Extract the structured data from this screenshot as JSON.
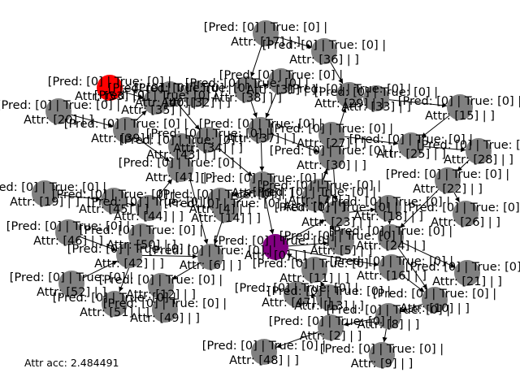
{
  "accuracy_text": "Attr acc: 2.484491",
  "colors": {
    "node_default": "#808080",
    "node_red": "#ff0000",
    "node_purple": "#800080",
    "edge": "#000000"
  },
  "nodes": [
    {
      "id": "n1",
      "line1": "[Pred: [0] | True: [0] |",
      "line2": "Attr: [1] | ]",
      "color": "node_default"
    },
    {
      "id": "n2",
      "line1": "[Pred: [0] | True: [0] |",
      "line2": "Attr: [2] | ]",
      "color": "node_default"
    },
    {
      "id": "n3",
      "line1": "[Pred: [0] | True: [0] |",
      "line2": "Attr: [3] | ]",
      "color": "node_default"
    },
    {
      "id": "n4",
      "line1": "[Pred: [0] | True: [0] |",
      "line2": "Attr: [4] | ]",
      "color": "node_default"
    },
    {
      "id": "n5",
      "line1": "[Pred: [0] | True: [0] |",
      "line2": "Attr: [5] | ]",
      "color": "node_default"
    },
    {
      "id": "n6",
      "line1": "[Pred: [0] | True: [0] |",
      "line2": "Attr: [6] | ]",
      "color": "node_default"
    },
    {
      "id": "n7",
      "line1": "[Pred: [0] | True: [0] |",
      "line2": "Attr: [7] | ]",
      "color": "node_default"
    },
    {
      "id": "n8",
      "line1": "[Pred: [0] | True: [0] |",
      "line2": "Attr: [8] | ]",
      "color": "node_default"
    },
    {
      "id": "n9",
      "line1": "[Pred: [0] | True: [0] |",
      "line2": "Attr: [9] | ]",
      "color": "node_default"
    },
    {
      "id": "n10",
      "line1": "[Pred: [0] | True: [0] |",
      "line2": "Attr: [10] | ]",
      "color": "node_default"
    },
    {
      "id": "n11",
      "line1": "[Pred: [0] | True: [0] |",
      "line2": "Attr: [11] | ]",
      "color": "node_default"
    },
    {
      "id": "n12",
      "line1": "[Pred: [0] | True: [0] |",
      "line2": "Attr: [12] | ]",
      "color": "node_default"
    },
    {
      "id": "n13",
      "line1": "[Pred: [0] | True: [0] |",
      "line2": "Attr: [13] | ]",
      "color": "node_default"
    },
    {
      "id": "n14",
      "line1": "[Pred: [0] | True: [0] |",
      "line2": "Attr: [14] | ]",
      "color": "node_default"
    },
    {
      "id": "n15",
      "line1": "[Pred: [0] | True: [0] |",
      "line2": "Attr: [15] | ]",
      "color": "node_default"
    },
    {
      "id": "n16",
      "line1": "[Pred: [0] | True: [0] |",
      "line2": "Attr: [16] | ]",
      "color": "node_default"
    },
    {
      "id": "n17",
      "line1": "[Pred: [0] | True: [0] |",
      "line2": "Attr: [17] | ]",
      "color": "node_default"
    },
    {
      "id": "n18",
      "line1": "[Pred: [0] | True: [0] |",
      "line2": "Attr: [18] | ]",
      "color": "node_default"
    },
    {
      "id": "n19",
      "line1": "[Pred: [0] | True: [0] |",
      "line2": "Attr: [19] | ]",
      "color": "node_default"
    },
    {
      "id": "n20",
      "line1": "[Pred: [0] | True: [0] |",
      "line2": "Attr: [20] | ]",
      "color": "node_default"
    },
    {
      "id": "n21",
      "line1": "[Pred: [0] | True: [0] |",
      "line2": "Attr: [21] | ]",
      "color": "node_default"
    },
    {
      "id": "n22",
      "line1": "[Pred: [0] | True: [0] |",
      "line2": "Attr: [22] | ]",
      "color": "node_default"
    },
    {
      "id": "n23",
      "line1": "[Pred: [0] | True: [0] |",
      "line2": "Attr: [23] | ]",
      "color": "node_default"
    },
    {
      "id": "n24",
      "line1": "[Pred: [0] | True: [0] |",
      "line2": "Attr: [24] | ]",
      "color": "node_default"
    },
    {
      "id": "n25",
      "line1": "[Pred: [0] | True: [0] |",
      "line2": "Attr: [25] | ]",
      "color": "node_default"
    },
    {
      "id": "n26",
      "line1": "[Pred: [0] | True: [0] |",
      "line2": "Attr: [26] | ]",
      "color": "node_default"
    },
    {
      "id": "n27",
      "line1": "[Pred: [0] | True: [0] |",
      "line2": "Attr: [27] | ]",
      "color": "node_default"
    },
    {
      "id": "n28",
      "line1": "[Pred: [0] | True: [0] |",
      "line2": "Attr: [28] | ]",
      "color": "node_default"
    },
    {
      "id": "n29",
      "line1": "[Pred: [0] | True: [0] |",
      "line2": "Attr: [29] | ]",
      "color": "node_default"
    },
    {
      "id": "n30",
      "line1": "[Pred: [0] | True: [0] |",
      "line2": "Attr: [30] | ]",
      "color": "node_default"
    },
    {
      "id": "n31",
      "line1": "[Pred: [0] | True: [0] |",
      "line2": "Attr: [31] | ]",
      "color": "node_default"
    },
    {
      "id": "n32",
      "line1": "[Pred: [0] | True: [0] |",
      "line2": "Attr: [32] | ]",
      "color": "node_default"
    },
    {
      "id": "n33",
      "line1": "[Pred: [0] | True: [0] |",
      "line2": "Attr: [33] | ]",
      "color": "node_default"
    },
    {
      "id": "n34",
      "line1": "[Pred: [0] | True: [0] |",
      "line2": "Attr: [34] | ]",
      "color": "node_default"
    },
    {
      "id": "n35",
      "line1": "[Pred: [0] | True: [0] |",
      "line2": "Attr: [35] | ]",
      "color": "node_default"
    },
    {
      "id": "n36",
      "line1": "[Pred: [0] | True: [0] |",
      "line2": "Attr: [36] | ]",
      "color": "node_default"
    },
    {
      "id": "n37",
      "line1": "[Pred: [0] | True: [0] |",
      "line2": "Attr: [37] | ]",
      "color": "node_default"
    },
    {
      "id": "n38",
      "line1": "[Pred: [0] | True: [0] |",
      "line2": "Attr: [38] | ]",
      "color": "node_default"
    },
    {
      "id": "n39",
      "line1": "[Pred: [0] | True: [0] |",
      "line2": "Attr: [39] | ]",
      "color": "node_default"
    },
    {
      "id": "n40",
      "line1": "[Pred: [0] | True: [0] |",
      "line2": "Attr: [40] | ]",
      "color": "node_default"
    },
    {
      "id": "n41",
      "line1": "[Pred: [0] | True: [0] |",
      "line2": "Attr: [41] | ]",
      "color": "node_default"
    },
    {
      "id": "n42",
      "line1": "[Pred: [0] | True: [0] |",
      "line2": "Attr: [42] | ]",
      "color": "node_default"
    },
    {
      "id": "n43",
      "line1": "[Pred: [0] | True: [0] |",
      "line2": "Attr: [43] | ]",
      "color": "node_default"
    },
    {
      "id": "n44",
      "line1": "[Pred: [0] | True: [0] |",
      "line2": "Attr: [44] | ]",
      "color": "node_default"
    },
    {
      "id": "n45",
      "line1": "[Pred: [0] | True: [0] |",
      "line2": "Attr: [45] | ]",
      "color": "node_default"
    },
    {
      "id": "n46",
      "line1": "[Pred: [0] | True: [0] |",
      "line2": "Attr: [46] | ]",
      "color": "node_default"
    },
    {
      "id": "n47",
      "line1": "[Pred: [0] | True: [0] |",
      "line2": "Attr: [47] | ]",
      "color": "node_default"
    },
    {
      "id": "n48",
      "line1": "[Pred: [0] | True: [0] |",
      "line2": "Attr: [48] | ]",
      "color": "node_default"
    },
    {
      "id": "n49",
      "line1": "[Pred: [0] | True: [0] |",
      "line2": "Attr: [49] | ]",
      "color": "node_default"
    },
    {
      "id": "n50",
      "line1": "[Pred: [0] | True: [0] |",
      "line2": "Attr: [50] | ]",
      "color": "node_default"
    },
    {
      "id": "n51",
      "line1": "[Pred: [0] | True: [0] |",
      "line2": "Attr: [51] | ]",
      "color": "node_default"
    },
    {
      "id": "n52",
      "line1": "[Pred: [0] | True: [0] |",
      "line2": "Attr: [52] | ]",
      "color": "node_default"
    },
    {
      "id": "nR",
      "line1": "[Pred: [0] | True: [0] |",
      "line2": "Attr: [53] | ]",
      "color": "node_red"
    },
    {
      "id": "nP",
      "line1": "[Pred: [0] | True: [0] |",
      "line2": "Attr: [0] | ]",
      "color": "node_purple"
    }
  ],
  "edges": [
    [
      "n17",
      "n36"
    ],
    [
      "n17",
      "n38"
    ],
    [
      "n36",
      "n29"
    ],
    [
      "n38",
      "n37"
    ],
    [
      "n38",
      "n31"
    ],
    [
      "n29",
      "n33"
    ],
    [
      "n33",
      "n15"
    ],
    [
      "n15",
      "n25"
    ],
    [
      "n29",
      "n39x"
    ],
    [
      "n31",
      "n37"
    ],
    [
      "n37",
      "n30"
    ],
    [
      "n30",
      "n27"
    ],
    [
      "n27",
      "n25"
    ],
    [
      "n25",
      "n28"
    ],
    [
      "n28",
      "n22"
    ],
    [
      "n22",
      "n26"
    ],
    [
      "n22",
      "n24"
    ],
    [
      "n24",
      "n21"
    ],
    [
      "n24",
      "n10"
    ],
    [
      "n10",
      "n8"
    ],
    [
      "n8",
      "n9"
    ],
    [
      "n8",
      "n2"
    ],
    [
      "n2",
      "n48"
    ],
    [
      "n47",
      "n13"
    ],
    [
      "n13",
      "n11"
    ],
    [
      "n11",
      "nP"
    ],
    [
      "nP",
      "n5"
    ],
    [
      "nP",
      "n23"
    ],
    [
      "nP",
      "n16"
    ],
    [
      "n23",
      "n18"
    ],
    [
      "n18",
      "n24"
    ],
    [
      "n16",
      "n10"
    ],
    [
      "n3",
      "nP"
    ],
    [
      "n3",
      "n4"
    ],
    [
      "n4",
      "n14"
    ],
    [
      "n14",
      "n6"
    ],
    [
      "n6",
      "n12"
    ],
    [
      "n12",
      "n49"
    ],
    [
      "n42",
      "n6"
    ],
    [
      "n42",
      "n50"
    ],
    [
      "n50",
      "n51"
    ],
    [
      "n52",
      "n42"
    ],
    [
      "n46",
      "n42"
    ],
    [
      "n19",
      "n45"
    ],
    [
      "n45",
      "n44"
    ],
    [
      "n44",
      "n41"
    ],
    [
      "n41",
      "n43"
    ],
    [
      "n43",
      "n34"
    ],
    [
      "n34",
      "n3"
    ],
    [
      "n40",
      "n34"
    ],
    [
      "n35",
      "n40"
    ],
    [
      "n20",
      "n39"
    ],
    [
      "n39",
      "n35"
    ],
    [
      "nR",
      "n35"
    ],
    [
      "nR",
      "n32"
    ],
    [
      "n32",
      "n40"
    ],
    [
      "n7",
      "n30"
    ],
    [
      "n7",
      "n29"
    ],
    [
      "n1",
      "n7"
    ],
    [
      "n1",
      "n5"
    ],
    [
      "n39",
      "n41"
    ],
    [
      "n43",
      "n6"
    ],
    [
      "n14",
      "n3"
    ],
    [
      "n37",
      "n3"
    ],
    [
      "n27",
      "n23"
    ]
  ]
}
